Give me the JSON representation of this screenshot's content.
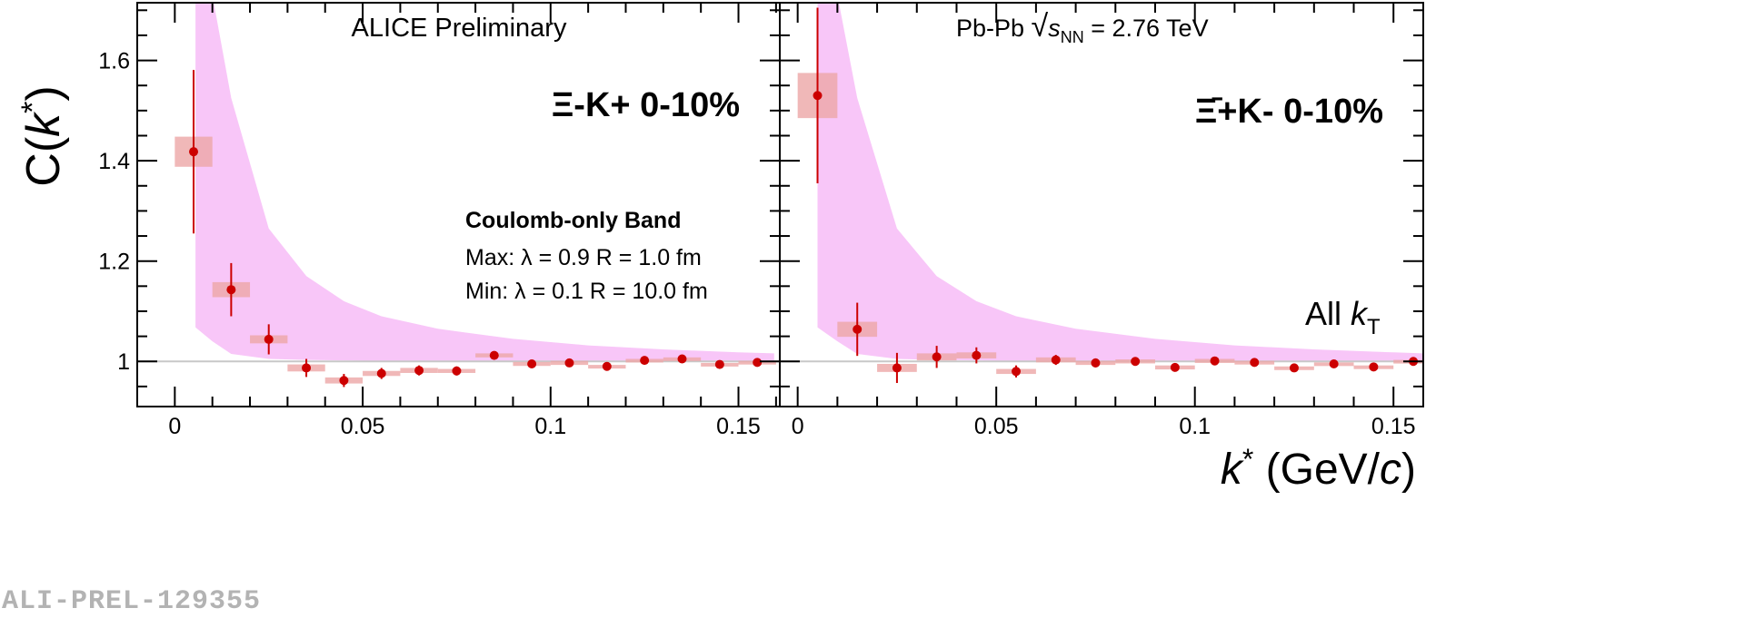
{
  "chart_data": [
    {
      "type": "scatter",
      "panel": "left",
      "title": "Ξ-K+  0-10%",
      "header": "ALICE Preliminary",
      "ylabel_main": "C(",
      "ylabel_var": "k",
      "ylabel_sup": "*",
      "ylabel_close": ")",
      "xlim": [
        -0.01,
        0.161
      ],
      "ylim": [
        0.91,
        1.715
      ],
      "grid": false,
      "reference_line": 1.0,
      "xticks": [
        0,
        0.05,
        0.1,
        0.15
      ],
      "xtick_labels": [
        "0",
        "0.05",
        "0.1",
        "0.15"
      ],
      "yticks": [
        1.0,
        1.2,
        1.4,
        1.6
      ],
      "ytick_labels": [
        "1",
        "1.2",
        "1.4",
        "1.6"
      ],
      "band_name": "Coulomb-only Band",
      "band_max_label": "Max: λ = 0.9  R = 1.0 fm",
      "band_min_label": "Min: λ = 0.1  R = 10.0 fm",
      "band_color": "#f8c6f8",
      "band_x": [
        0.0055,
        0.01,
        0.015,
        0.025,
        0.035,
        0.045,
        0.055,
        0.07,
        0.09,
        0.11,
        0.13,
        0.15,
        0.1595
      ],
      "band_upper": [
        1.73,
        1.73,
        1.525,
        1.265,
        1.17,
        1.12,
        1.09,
        1.065,
        1.045,
        1.032,
        1.024,
        1.018,
        1.016
      ],
      "band_lower": [
        1.068,
        1.04,
        1.015,
        1.005,
        1.003,
        1.002,
        1.001,
        1.001,
        1.0,
        1.0,
        1.0,
        1.0,
        1.0
      ],
      "x": [
        0.005,
        0.015,
        0.025,
        0.035,
        0.045,
        0.055,
        0.065,
        0.075,
        0.085,
        0.095,
        0.105,
        0.115,
        0.125,
        0.135,
        0.145,
        0.155
      ],
      "y": [
        1.418,
        1.143,
        1.044,
        0.987,
        0.962,
        0.976,
        0.982,
        0.981,
        1.012,
        0.995,
        0.997,
        0.99,
        1.002,
        1.005,
        0.994,
        0.998
      ],
      "stat_err": [
        0.163,
        0.053,
        0.03,
        0.018,
        0.013,
        0.011,
        0.01,
        0.009,
        0.008,
        0.007,
        0.006,
        0.006,
        0.005,
        0.005,
        0.005,
        0.005
      ],
      "sys_err": [
        0.03,
        0.015,
        0.008,
        0.007,
        0.006,
        0.005,
        0.005,
        0.004,
        0.004,
        0.004,
        0.004,
        0.003,
        0.003,
        0.003,
        0.003,
        0.003
      ]
    },
    {
      "type": "scatter",
      "panel": "right",
      "title": "Ξ̄+K-  0-10%",
      "header_prefix": "Pb-Pb ",
      "header_sqrt": "√",
      "header_s": "s",
      "header_sub": "NN",
      "header_value": " = 2.76 TeV",
      "kt_label": "All ",
      "kt_var": "k",
      "kt_sub": "T",
      "xlabel_var": "k",
      "xlabel_sup": "*",
      "xlabel_unit_open": " (GeV/",
      "xlabel_unit_c": "c",
      "xlabel_unit_close": ")",
      "xlim": [
        -0.0045,
        0.1575
      ],
      "ylim": [
        0.91,
        1.715
      ],
      "grid": false,
      "reference_line": 1.0,
      "xticks": [
        0,
        0.05,
        0.1,
        0.15
      ],
      "xtick_labels": [
        "0",
        "0.05",
        "0.1",
        "0.15"
      ],
      "band_color": "#f8c6f8",
      "band_x": [
        0.005,
        0.01,
        0.015,
        0.025,
        0.035,
        0.045,
        0.055,
        0.07,
        0.09,
        0.11,
        0.13,
        0.15,
        0.1575
      ],
      "band_upper": [
        1.73,
        1.73,
        1.525,
        1.265,
        1.17,
        1.12,
        1.09,
        1.065,
        1.045,
        1.032,
        1.024,
        1.018,
        1.016
      ],
      "band_lower": [
        1.068,
        1.04,
        1.015,
        1.005,
        1.003,
        1.002,
        1.001,
        1.001,
        1.0,
        1.0,
        1.0,
        1.0,
        1.0
      ],
      "x": [
        0.005,
        0.015,
        0.025,
        0.035,
        0.045,
        0.055,
        0.065,
        0.075,
        0.085,
        0.095,
        0.105,
        0.115,
        0.125,
        0.135,
        0.145,
        0.155
      ],
      "y": [
        1.53,
        1.064,
        0.987,
        1.009,
        1.012,
        0.98,
        1.003,
        0.997,
        1.0,
        0.988,
        1.001,
        0.998,
        0.987,
        0.995,
        0.989,
        1.0
      ],
      "stat_err": [
        0.175,
        0.053,
        0.03,
        0.022,
        0.016,
        0.012,
        0.01,
        0.009,
        0.008,
        0.007,
        0.006,
        0.006,
        0.005,
        0.005,
        0.005,
        0.005
      ],
      "sys_err": [
        0.045,
        0.015,
        0.008,
        0.007,
        0.006,
        0.005,
        0.005,
        0.004,
        0.004,
        0.004,
        0.004,
        0.003,
        0.003,
        0.003,
        0.003,
        0.003
      ]
    }
  ],
  "colors": {
    "marker": "#cc0000",
    "sys_box": "#eca6a6",
    "band": "#f8c6f8",
    "reference_line": "#c8c8c8",
    "axis": "#000000"
  },
  "watermark": "ALI-PREL-129355"
}
